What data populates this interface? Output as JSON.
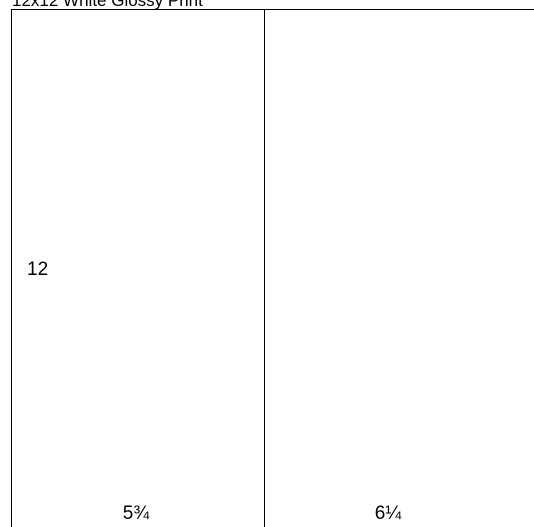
{
  "title": "12x12 White Glossy Print",
  "panels": {
    "height": "12",
    "left_width": "5¾",
    "right_width": "6¼"
  },
  "colors": {
    "background": "#ffffff",
    "line": "#000000"
  }
}
